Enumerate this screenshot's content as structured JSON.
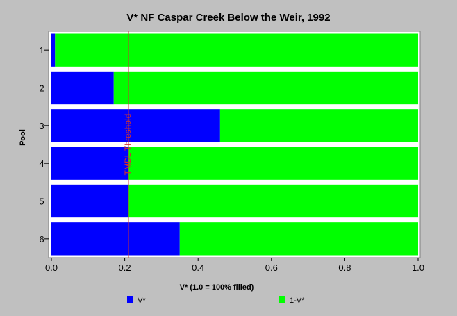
{
  "chart_data": {
    "type": "bar",
    "orientation": "horizontal",
    "stacked": true,
    "title": "V* NF Caspar Creek Below the Weir, 1992",
    "xlabel": "V* (1.0 = 100% filled)",
    "ylabel": "Pool",
    "categories": [
      "1",
      "2",
      "3",
      "4",
      "5",
      "6"
    ],
    "xlim": [
      0,
      1
    ],
    "x_ticks": [
      "0.0",
      "0.2",
      "0.4",
      "0.6",
      "0.8",
      "1.0"
    ],
    "series": [
      {
        "name": "V*",
        "color": "#0000ff",
        "values": [
          0.01,
          0.17,
          0.46,
          0.21,
          0.21,
          0.35
        ]
      },
      {
        "name": "1-V*",
        "color": "#00ff00",
        "values": [
          0.99,
          0.83,
          0.54,
          0.79,
          0.79,
          0.65
        ]
      }
    ],
    "threshold": {
      "label": "TMDL Threshold",
      "value": 0.21,
      "color": "#cc3333"
    },
    "grid": false,
    "legend_position": "bottom"
  }
}
